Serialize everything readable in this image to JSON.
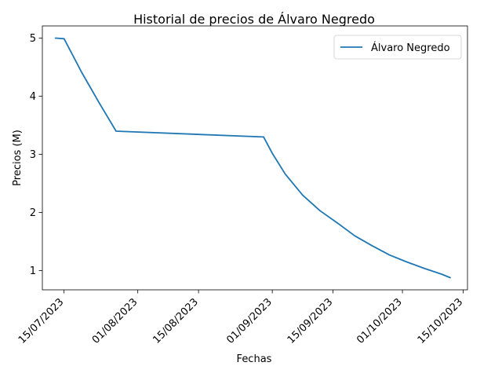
{
  "chart_data": {
    "type": "line",
    "title": "Historial de precios de Álvaro Negredo",
    "xlabel": "Fechas",
    "ylabel": "Precios (M)",
    "x_ticks": [
      "15/07/2023",
      "01/08/2023",
      "15/08/2023",
      "01/09/2023",
      "15/09/2023",
      "01/10/2023",
      "15/10/2023"
    ],
    "y_ticks": [
      "1",
      "2",
      "3",
      "4",
      "5"
    ],
    "xlim": [
      "2023-07-10",
      "2023-10-16"
    ],
    "ylim": [
      0.67,
      5.21
    ],
    "legend_position": "top-right",
    "grid": false,
    "series": [
      {
        "name": "Álvaro Negredo",
        "color": "#1f77b4",
        "points": [
          {
            "x": "2023-07-13",
            "y": 5.0
          },
          {
            "x": "2023-07-15",
            "y": 4.99
          },
          {
            "x": "2023-07-19",
            "y": 4.42
          },
          {
            "x": "2023-07-23",
            "y": 3.9
          },
          {
            "x": "2023-07-27",
            "y": 3.4
          },
          {
            "x": "2023-08-30",
            "y": 3.3
          },
          {
            "x": "2023-09-01",
            "y": 3.02
          },
          {
            "x": "2023-09-04",
            "y": 2.66
          },
          {
            "x": "2023-09-08",
            "y": 2.3
          },
          {
            "x": "2023-09-12",
            "y": 2.03
          },
          {
            "x": "2023-09-16",
            "y": 1.82
          },
          {
            "x": "2023-09-20",
            "y": 1.6
          },
          {
            "x": "2023-09-24",
            "y": 1.43
          },
          {
            "x": "2023-09-28",
            "y": 1.27
          },
          {
            "x": "2023-10-02",
            "y": 1.15
          },
          {
            "x": "2023-10-06",
            "y": 1.04
          },
          {
            "x": "2023-10-10",
            "y": 0.94
          },
          {
            "x": "2023-10-12",
            "y": 0.88
          }
        ]
      }
    ]
  }
}
